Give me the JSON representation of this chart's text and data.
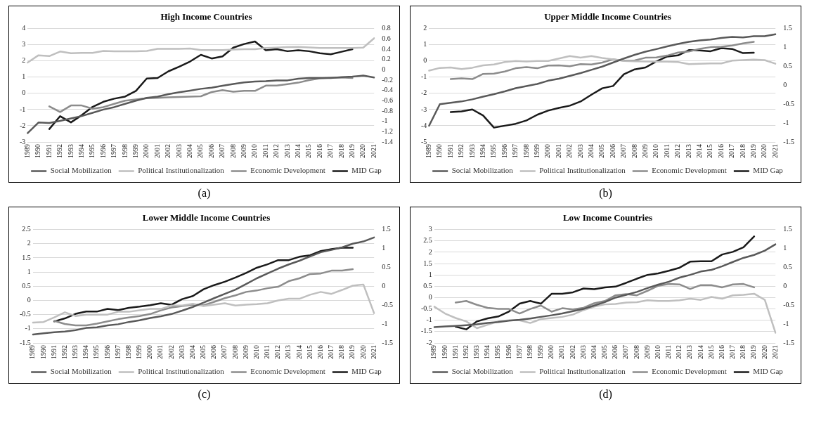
{
  "chart_data": [
    {
      "type": "line",
      "title": "High Income Countries",
      "annotations": [
        "(a)"
      ],
      "grid": "y",
      "legend": "bottom",
      "categories": [
        "1989",
        "1990",
        "1991",
        "1992",
        "1993",
        "1994",
        "1995",
        "1996",
        "1997",
        "1998",
        "1999",
        "2000",
        "2001",
        "2002",
        "2003",
        "2004",
        "2005",
        "2006",
        "2007",
        "2008",
        "2009",
        "2010",
        "2011",
        "2012",
        "2013",
        "2014",
        "2015",
        "2016",
        "2017",
        "2018",
        "2019",
        "2020",
        "2021"
      ],
      "ylim": [
        -3,
        4
      ],
      "yticks": [
        -3,
        -2,
        -1,
        0,
        1,
        2,
        3,
        4
      ],
      "y2lim": [
        -1.4,
        0.8
      ],
      "y2ticks": [
        -1.4,
        -1.2,
        -1,
        -0.8,
        -0.6,
        -0.4,
        -0.2,
        0,
        0.2,
        0.4,
        0.6,
        0.8
      ],
      "series": [
        {
          "name": "Social Mobilization",
          "color": "#595959",
          "values": [
            -2.45,
            -1.8,
            -1.83,
            -1.7,
            -1.55,
            -1.4,
            -1.2,
            -1.0,
            -0.85,
            -0.65,
            -0.45,
            -0.28,
            -0.2,
            -0.05,
            0.07,
            0.17,
            0.28,
            0.35,
            0.47,
            0.58,
            0.68,
            0.73,
            0.75,
            0.8,
            0.8,
            0.9,
            0.95,
            0.95,
            0.95,
            1.0,
            1.03,
            1.1,
            0.98
          ]
        },
        {
          "name": "Political Institutionalization",
          "color": "#bfbfbf",
          "values": [
            1.9,
            2.35,
            2.3,
            2.58,
            2.48,
            2.5,
            2.5,
            2.62,
            2.6,
            2.6,
            2.6,
            2.62,
            2.75,
            2.75,
            2.75,
            2.77,
            2.67,
            2.67,
            2.67,
            2.7,
            2.72,
            2.72,
            2.8,
            2.82,
            2.85,
            2.87,
            2.83,
            2.8,
            2.8,
            2.8,
            2.8,
            2.82,
            3.4
          ]
        },
        {
          "name": "Economic Development",
          "color": "#8c8c8c",
          "values": [
            null,
            null,
            -0.8,
            -1.15,
            -0.75,
            -0.75,
            -0.95,
            -0.85,
            -0.65,
            -0.45,
            -0.38,
            -0.3,
            -0.28,
            -0.25,
            -0.22,
            -0.2,
            -0.18,
            0.08,
            0.2,
            0.1,
            0.15,
            0.15,
            0.48,
            0.48,
            0.57,
            0.66,
            0.82,
            0.92,
            0.97,
            0.98,
            0.95,
            null,
            null
          ]
        },
        {
          "name": "MID Gap",
          "color": "#1a1a1a",
          "axis": "y2",
          "values": [
            null,
            null,
            -1.15,
            -0.9,
            -1.02,
            -0.88,
            -0.72,
            -0.62,
            -0.56,
            -0.52,
            -0.41,
            -0.17,
            -0.16,
            -0.03,
            0.06,
            0.16,
            0.29,
            0.22,
            0.26,
            0.43,
            0.5,
            0.55,
            0.38,
            0.4,
            0.36,
            0.38,
            0.36,
            0.32,
            0.3,
            0.35,
            0.4,
            null,
            null
          ]
        }
      ]
    },
    {
      "type": "line",
      "title": "Upper Middle Income Countries",
      "annotations": [
        "(b)"
      ],
      "grid": "y",
      "legend": "bottom",
      "categories": [
        "1989",
        "1990",
        "1991",
        "1992",
        "1993",
        "1994",
        "1995",
        "1996",
        "1997",
        "1998",
        "1999",
        "2000",
        "2001",
        "2002",
        "2003",
        "2004",
        "2005",
        "2006",
        "2007",
        "2008",
        "2009",
        "2010",
        "2011",
        "2012",
        "2013",
        "2014",
        "2015",
        "2016",
        "2017",
        "2018",
        "2019",
        "2020",
        "2021"
      ],
      "ylim": [
        -5,
        2
      ],
      "yticks": [
        -5,
        -4,
        -3,
        -2,
        -1,
        0,
        1,
        2
      ],
      "y2lim": [
        -1.5,
        1.5
      ],
      "y2ticks": [
        -1.5,
        -1,
        -0.5,
        0,
        0.5,
        1,
        1.5
      ],
      "series": [
        {
          "name": "Social Mobilization",
          "color": "#595959",
          "values": [
            -4.0,
            -2.67,
            -2.58,
            -2.5,
            -2.37,
            -2.2,
            -2.05,
            -1.88,
            -1.68,
            -1.55,
            -1.42,
            -1.22,
            -1.1,
            -0.92,
            -0.75,
            -0.55,
            -0.35,
            -0.1,
            0.15,
            0.38,
            0.57,
            0.73,
            0.9,
            1.05,
            1.18,
            1.27,
            1.32,
            1.42,
            1.48,
            1.45,
            1.53,
            1.53,
            1.65
          ]
        },
        {
          "name": "Political Institutionalization",
          "color": "#bfbfbf",
          "values": [
            -0.6,
            -0.43,
            -0.4,
            -0.5,
            -0.42,
            -0.27,
            -0.22,
            -0.07,
            0.0,
            -0.03,
            0.0,
            0.0,
            0.15,
            0.3,
            0.2,
            0.3,
            0.18,
            0.1,
            0.0,
            -0.02,
            -0.03,
            -0.05,
            -0.05,
            -0.07,
            -0.2,
            -0.17,
            -0.15,
            -0.15,
            0.02,
            0.05,
            0.08,
            0.05,
            -0.17
          ]
        },
        {
          "name": "Economic Development",
          "color": "#8c8c8c",
          "values": [
            null,
            null,
            -1.12,
            -1.08,
            -1.12,
            -0.8,
            -0.78,
            -0.65,
            -0.45,
            -0.38,
            -0.45,
            -0.28,
            -0.27,
            -0.33,
            -0.2,
            -0.22,
            -0.1,
            0.1,
            0.02,
            0.03,
            0.2,
            0.22,
            0.33,
            0.52,
            0.58,
            0.75,
            0.85,
            0.88,
            0.95,
            1.08,
            1.18,
            null,
            null
          ]
        },
        {
          "name": "MID Gap",
          "color": "#1a1a1a",
          "axis": "y2",
          "values": [
            null,
            null,
            -0.71,
            -0.69,
            -0.64,
            -0.8,
            -1.12,
            -1.07,
            -1.02,
            -0.93,
            -0.78,
            -0.67,
            -0.6,
            -0.54,
            -0.43,
            -0.25,
            -0.08,
            -0.02,
            0.29,
            0.42,
            0.47,
            0.63,
            0.76,
            0.79,
            0.93,
            0.92,
            0.9,
            0.98,
            0.96,
            0.85,
            0.86,
            null,
            null
          ]
        }
      ]
    },
    {
      "type": "line",
      "title": "Lower Middle Income Countries",
      "annotations": [
        "(c)"
      ],
      "grid": "y",
      "legend": "bottom",
      "categories": [
        "1989",
        "1990",
        "1991",
        "1992",
        "1993",
        "1994",
        "1995",
        "1996",
        "1997",
        "1998",
        "1999",
        "2000",
        "2001",
        "2002",
        "2003",
        "2004",
        "2005",
        "2006",
        "2007",
        "2008",
        "2009",
        "2010",
        "2011",
        "2012",
        "2013",
        "2014",
        "2015",
        "2016",
        "2017",
        "2018",
        "2019",
        "2020",
        "2021"
      ],
      "ylim": [
        -1.5,
        2.5
      ],
      "yticks": [
        -1.5,
        -1,
        -0.5,
        0,
        0.5,
        1,
        1.5,
        2,
        2.5
      ],
      "y2lim": [
        -1.5,
        1.5
      ],
      "y2ticks": [
        -1.5,
        -1,
        -0.5,
        0,
        0.5,
        1,
        1.5
      ],
      "series": [
        {
          "name": "Social Mobilization",
          "color": "#595959",
          "values": [
            -1.2,
            -1.16,
            -1.12,
            -1.1,
            -1.05,
            -0.97,
            -0.95,
            -0.88,
            -0.84,
            -0.76,
            -0.7,
            -0.62,
            -0.56,
            -0.48,
            -0.36,
            -0.23,
            -0.08,
            0.08,
            0.23,
            0.38,
            0.58,
            0.78,
            0.95,
            1.12,
            1.27,
            1.4,
            1.55,
            1.7,
            1.78,
            1.87,
            2.0,
            2.08,
            2.22
          ]
        },
        {
          "name": "Political Institutionalization",
          "color": "#bfbfbf",
          "values": [
            -0.78,
            -0.76,
            -0.6,
            -0.42,
            -0.55,
            -0.5,
            -0.5,
            -0.5,
            -0.4,
            -0.4,
            -0.35,
            -0.3,
            -0.3,
            -0.18,
            -0.18,
            -0.12,
            -0.2,
            -0.15,
            -0.1,
            -0.18,
            -0.15,
            -0.13,
            -0.1,
            0.0,
            0.06,
            0.06,
            0.2,
            0.3,
            0.23,
            0.37,
            0.52,
            0.56,
            -0.45
          ]
        },
        {
          "name": "Economic Development",
          "color": "#8c8c8c",
          "values": [
            null,
            null,
            -0.72,
            -0.83,
            -0.88,
            -0.88,
            -0.82,
            -0.74,
            -0.66,
            -0.6,
            -0.55,
            -0.48,
            -0.35,
            -0.25,
            -0.2,
            -0.15,
            -0.17,
            -0.05,
            0.08,
            0.18,
            0.3,
            0.35,
            0.43,
            0.48,
            0.68,
            0.78,
            0.93,
            0.95,
            1.05,
            1.05,
            1.1,
            null,
            null
          ]
        },
        {
          "name": "MID Gap",
          "color": "#1a1a1a",
          "axis": "y2",
          "values": [
            null,
            null,
            -0.93,
            -0.85,
            -0.73,
            -0.67,
            -0.67,
            -0.6,
            -0.63,
            -0.57,
            -0.54,
            -0.5,
            -0.45,
            -0.49,
            -0.34,
            -0.26,
            -0.08,
            0.03,
            0.12,
            0.23,
            0.35,
            0.49,
            0.58,
            0.69,
            0.69,
            0.78,
            0.82,
            0.93,
            0.98,
            1.02,
            1.02,
            null,
            null
          ]
        }
      ]
    },
    {
      "type": "line",
      "title": "Low Income Countries",
      "annotations": [
        "(d)"
      ],
      "grid": "y",
      "legend": "bottom",
      "categories": [
        "1989",
        "1990",
        "1991",
        "1992",
        "1993",
        "1994",
        "1995",
        "1996",
        "1997",
        "1998",
        "1999",
        "2000",
        "2001",
        "2002",
        "2003",
        "2004",
        "2005",
        "2006",
        "2007",
        "2008",
        "2009",
        "2010",
        "2011",
        "2012",
        "2013",
        "2014",
        "2015",
        "2016",
        "2017",
        "2018",
        "2019",
        "2020",
        "2021"
      ],
      "ylim": [
        -2,
        3
      ],
      "yticks": [
        -2,
        -1.5,
        -1,
        -0.5,
        0,
        0.5,
        1,
        1.5,
        2,
        2.5,
        3
      ],
      "y2lim": [
        -1.5,
        1.5
      ],
      "y2ticks": [
        -1.5,
        -1,
        -0.5,
        0,
        0.5,
        1,
        1.5
      ],
      "series": [
        {
          "name": "Social Mobilization",
          "color": "#595959",
          "values": [
            -1.3,
            -1.27,
            -1.25,
            -1.22,
            -1.18,
            -1.12,
            -1.08,
            -1.02,
            -0.98,
            -0.92,
            -0.85,
            -0.78,
            -0.7,
            -0.6,
            -0.5,
            -0.35,
            -0.2,
            0.0,
            0.12,
            0.25,
            0.42,
            0.57,
            0.7,
            0.88,
            1.0,
            1.15,
            1.22,
            1.38,
            1.57,
            1.75,
            1.88,
            2.07,
            2.35
          ]
        },
        {
          "name": "Political Institutionalization",
          "color": "#bfbfbf",
          "values": [
            -0.4,
            -0.7,
            -0.9,
            -1.05,
            -1.35,
            -1.2,
            -1.05,
            -1.0,
            -1.0,
            -1.12,
            -0.95,
            -0.9,
            -0.85,
            -0.75,
            -0.55,
            -0.4,
            -0.3,
            -0.28,
            -0.22,
            -0.2,
            -0.12,
            -0.15,
            -0.15,
            -0.12,
            -0.05,
            -0.1,
            0.03,
            -0.05,
            0.1,
            0.12,
            0.17,
            -0.1,
            -1.55
          ]
        },
        {
          "name": "Economic Development",
          "color": "#8c8c8c",
          "values": [
            null,
            null,
            -0.22,
            -0.15,
            -0.32,
            -0.45,
            -0.5,
            -0.5,
            -0.7,
            -0.5,
            -0.35,
            -0.62,
            -0.47,
            -0.52,
            -0.45,
            -0.25,
            -0.15,
            0.1,
            0.15,
            0.1,
            0.3,
            0.52,
            0.6,
            0.58,
            0.38,
            0.55,
            0.55,
            0.45,
            0.58,
            0.6,
            0.45,
            null,
            null
          ]
        },
        {
          "name": "MID Gap",
          "color": "#1a1a1a",
          "axis": "y2",
          "values": [
            null,
            null,
            -1.07,
            -1.14,
            -0.93,
            -0.85,
            -0.8,
            -0.67,
            -0.46,
            -0.39,
            -0.46,
            -0.2,
            -0.2,
            -0.16,
            -0.06,
            -0.08,
            -0.03,
            -0.01,
            0.09,
            0.2,
            0.3,
            0.34,
            0.41,
            0.49,
            0.65,
            0.66,
            0.66,
            0.84,
            0.91,
            1.03,
            1.32,
            null,
            null
          ]
        }
      ]
    }
  ]
}
